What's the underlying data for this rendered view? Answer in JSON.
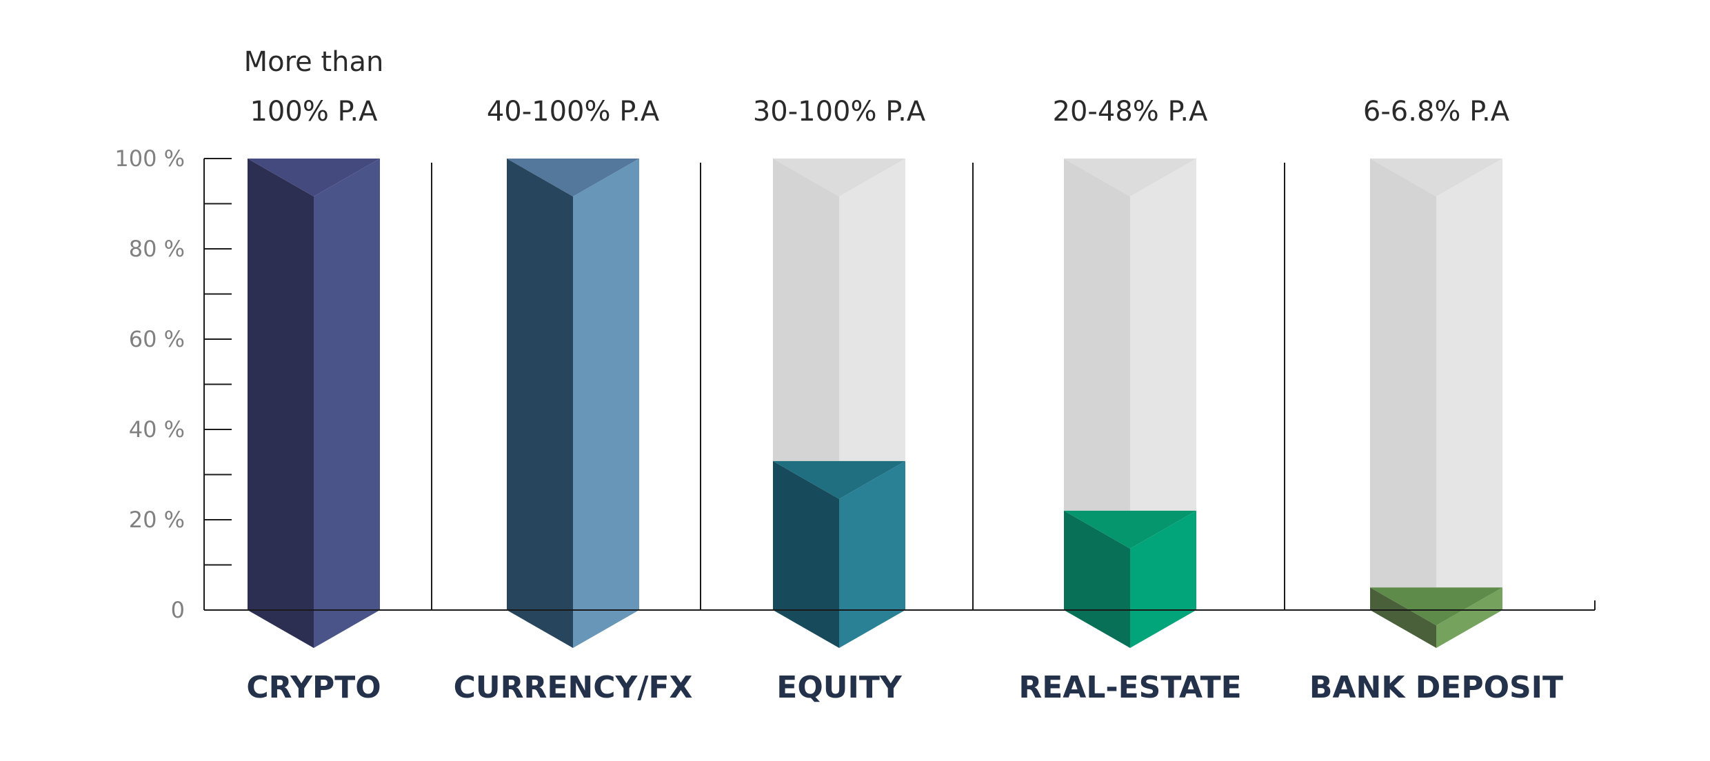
{
  "chart_data": {
    "type": "bar",
    "categories": [
      "CRYPTO",
      "CURRENCY/FX",
      "EQUITY",
      "REAL-ESTATE",
      "BANK DEPOSIT"
    ],
    "rate_labels": [
      [
        "More than",
        "100% P.A"
      ],
      [
        "40-100% P.A"
      ],
      [
        "30-100% P.A"
      ],
      [
        "20-48% P.A"
      ],
      [
        "6-6.8% P.A"
      ]
    ],
    "series": [
      {
        "values": [
          100,
          100,
          33,
          22,
          5
        ]
      }
    ],
    "ylim": [
      0,
      100
    ],
    "y_ticks": [
      {
        "value": 0,
        "label": "0"
      },
      {
        "value": 20,
        "label": "20 %"
      },
      {
        "value": 40,
        "label": "40 %"
      },
      {
        "value": 60,
        "label": "60 %"
      },
      {
        "value": 80,
        "label": "80 %"
      },
      {
        "value": 100,
        "label": "100 %"
      }
    ],
    "grid": false,
    "legend": "none",
    "colors": {
      "bars": [
        {
          "left": "#2c2f52",
          "right": "#4b5488",
          "top": "#454a7e"
        },
        {
          "left": "#27455c",
          "right": "#6896b8",
          "top": "#54789c"
        },
        {
          "left": "#174a5b",
          "right": "#2a8196",
          "top": "#1f6f80"
        },
        {
          "left": "#077056",
          "right": "#02a47a",
          "top": "#05966e"
        },
        {
          "left": "#49603a",
          "right": "#75a35d",
          "top": "#5e8a4a"
        }
      ],
      "track_left": "#d4d4d4",
      "track_right": "#e5e5e5",
      "track_top": "#dcdcdc",
      "axis": "#1a1a1a"
    }
  }
}
